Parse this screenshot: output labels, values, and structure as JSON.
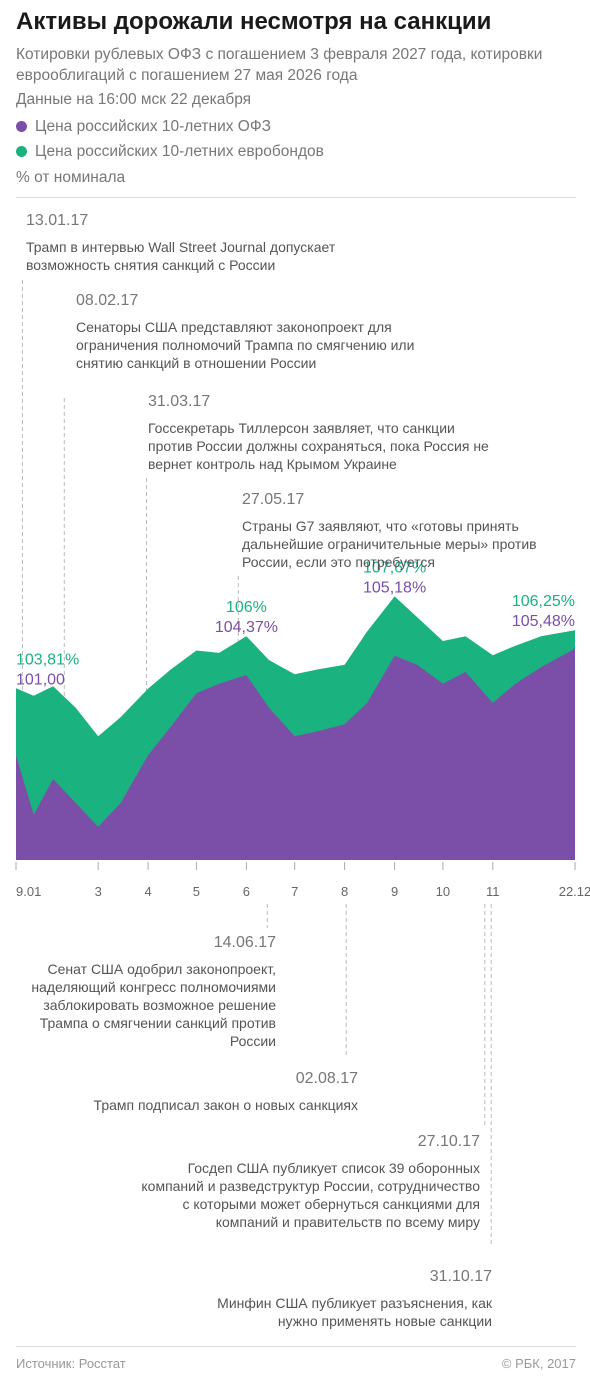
{
  "header": {
    "title": "Активы дорожали несмотря на санкции",
    "subtitle": "Котировки рублевых ОФЗ с погашением 3 февраля 2027 года, котировки еврооблигаций с погашением 27 мая 2026 года",
    "data_note": "Данные на 16:00 мск 22 декабря",
    "unit": "% от номинала"
  },
  "colors": {
    "ofz": "#7b4ea8",
    "eurobond": "#1ab37f"
  },
  "events_top": [
    {
      "date": "13.01.17",
      "text": "Трамп в интервью Wall Street Journal допускает возможность снятия санкций с России"
    },
    {
      "date": "08.02.17",
      "text": "Сенаторы США представляют законопроект для ограничения полномочий Трампа по смягчению или снятию санкций в отношении России"
    },
    {
      "date": "31.03.17",
      "text": "Госсекретарь Тиллерсон заявляет, что санкции против России должны сохраняться, пока Россия не вернет контроль над Крымом Украине"
    },
    {
      "date": "27.05.17",
      "text": "Страны G7 заявляют, что «готовы принять дальнейшие ограничительные меры» против России, если это потребуется"
    }
  ],
  "events_bottom": [
    {
      "date": "14.06.17",
      "text": "Сенат США одобрил законопроект, наделяющий конгресс полномочиями заблокировать возможное решение Трампа о смягчении санкций против России"
    },
    {
      "date": "02.08.17",
      "text": "Трамп подписал закон о новых санкциях"
    },
    {
      "date": "27.10.17",
      "text": "Госдеп США публикует список 39 оборонных компаний и разведструктур России, сотрудничество с которыми может обернуться санкциями для компаний и правительств по всему миру"
    },
    {
      "date": "31.10.17",
      "text": "Минфин США публикует разъяснения, как нужно применять новые санкции"
    }
  ],
  "footer": {
    "source": "Источник: Росстат",
    "copyright": "© РБК, 2017"
  },
  "chart_data": {
    "type": "area",
    "x_tick_labels": [
      "9.01",
      "3",
      "4",
      "5",
      "6",
      "7",
      "8",
      "9",
      "10",
      "11",
      "22.12"
    ],
    "x_ticks": [
      "2017-01-09",
      "2017-03-01",
      "2017-04-01",
      "2017-05-01",
      "2017-06-01",
      "2017-07-01",
      "2017-08-01",
      "2017-09-01",
      "2017-10-01",
      "2017-11-01",
      "2017-12-22"
    ],
    "x_range": [
      "2017-01-09",
      "2017-12-22"
    ],
    "series": [
      {
        "name": "Цена российских 10-летних ОФЗ",
        "color": "#7b4ea8",
        "x": [
          "2017-01-09",
          "2017-01-20",
          "2017-02-01",
          "2017-02-15",
          "2017-03-01",
          "2017-03-15",
          "2017-04-01",
          "2017-04-15",
          "2017-05-01",
          "2017-05-15",
          "2017-06-01",
          "2017-06-15",
          "2017-07-01",
          "2017-07-15",
          "2017-08-01",
          "2017-08-15",
          "2017-09-01",
          "2017-09-15",
          "2017-10-01",
          "2017-10-15",
          "2017-11-01",
          "2017-11-15",
          "2017-12-01",
          "2017-12-22"
        ],
        "values": [
          101.0,
          98.5,
          100.0,
          99.0,
          98.0,
          99.0,
          101.0,
          102.2,
          103.6,
          104.0,
          104.37,
          103.0,
          101.8,
          102.0,
          102.3,
          103.2,
          105.18,
          104.8,
          104.0,
          104.5,
          103.2,
          104.0,
          104.7,
          105.48
        ]
      },
      {
        "name": "Цена российских 10-летних евробондов",
        "color": "#1ab37f",
        "x": [
          "2017-01-09",
          "2017-01-20",
          "2017-02-01",
          "2017-02-15",
          "2017-03-01",
          "2017-03-15",
          "2017-04-01",
          "2017-04-15",
          "2017-05-01",
          "2017-05-15",
          "2017-06-01",
          "2017-06-15",
          "2017-07-01",
          "2017-07-15",
          "2017-08-01",
          "2017-08-15",
          "2017-09-01",
          "2017-09-15",
          "2017-10-01",
          "2017-10-15",
          "2017-11-01",
          "2017-11-15",
          "2017-12-01",
          "2017-12-22"
        ],
        "values": [
          103.81,
          103.5,
          103.9,
          103.0,
          101.8,
          102.6,
          103.8,
          104.6,
          105.4,
          105.3,
          106.0,
          105.0,
          104.4,
          104.6,
          104.8,
          106.2,
          107.67,
          106.8,
          105.8,
          106.0,
          105.2,
          105.6,
          106.0,
          106.25
        ]
      }
    ],
    "annotations": [
      {
        "series": "eurobond",
        "x": "2017-01-09",
        "label": "103,81%"
      },
      {
        "series": "ofz",
        "x": "2017-01-09",
        "label": "101,00"
      },
      {
        "series": "eurobond",
        "x": "2017-06-01",
        "label": "106%"
      },
      {
        "series": "ofz",
        "x": "2017-06-01",
        "label": "104,37%"
      },
      {
        "series": "eurobond",
        "x": "2017-09-01",
        "label": "107,67%"
      },
      {
        "series": "ofz",
        "x": "2017-09-01",
        "label": "105,18%"
      },
      {
        "series": "eurobond",
        "x": "2017-12-22",
        "label": "106,25%"
      },
      {
        "series": "ofz",
        "x": "2017-12-22",
        "label": "105,48%"
      }
    ]
  }
}
